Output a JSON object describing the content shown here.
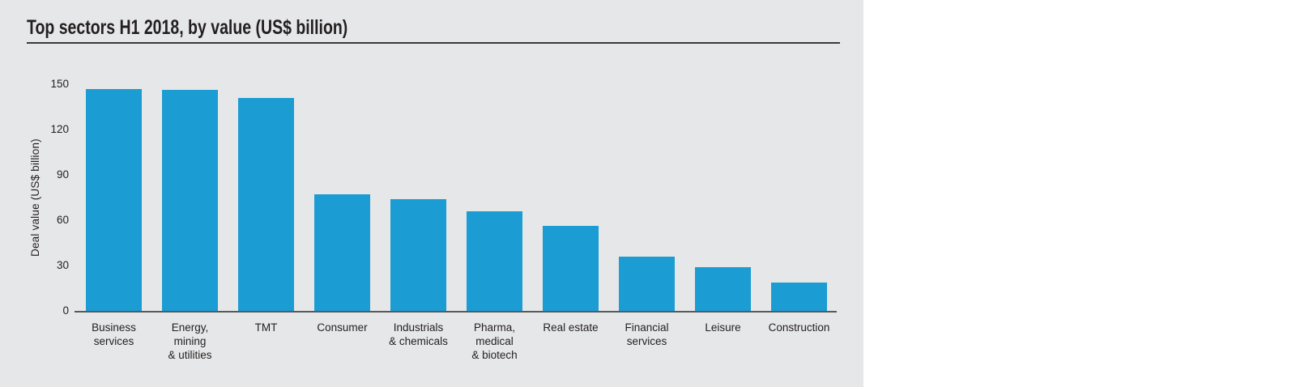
{
  "page": {
    "background": "#ffffff",
    "panel_background": "#e6e7e8"
  },
  "chart_data": {
    "type": "bar",
    "title": "Top sectors H1 2018, by value (US$ billion)",
    "xlabel": "",
    "ylabel": "Deal value (US$ billion)",
    "ylim": [
      0,
      150
    ],
    "yticks": [
      0,
      30,
      60,
      90,
      120,
      150
    ],
    "grid": false,
    "legend": "none",
    "bar_color": "#1b9cd3",
    "axis_color": "#58595b",
    "text_color": "#231f20",
    "title_rule_color": "#39393b",
    "categories": [
      "Business services",
      "Energy, mining & utilities",
      "TMT",
      "Consumer",
      "Industrials & chemicals",
      "Pharma, medical & biotech",
      "Real estate",
      "Financial services",
      "Leisure",
      "Construction"
    ],
    "categories_lines": [
      [
        "Business",
        "services"
      ],
      [
        "Energy,",
        "mining",
        "& utilities"
      ],
      [
        "TMT"
      ],
      [
        "Consumer"
      ],
      [
        "Industrials",
        "& chemicals"
      ],
      [
        "Pharma,",
        "medical",
        "& biotech"
      ],
      [
        "Real estate"
      ],
      [
        "Financial",
        "services"
      ],
      [
        "Leisure"
      ],
      [
        "Construction"
      ]
    ],
    "values": [
      147,
      146,
      141,
      77,
      74,
      66,
      56,
      36,
      29,
      19
    ]
  }
}
